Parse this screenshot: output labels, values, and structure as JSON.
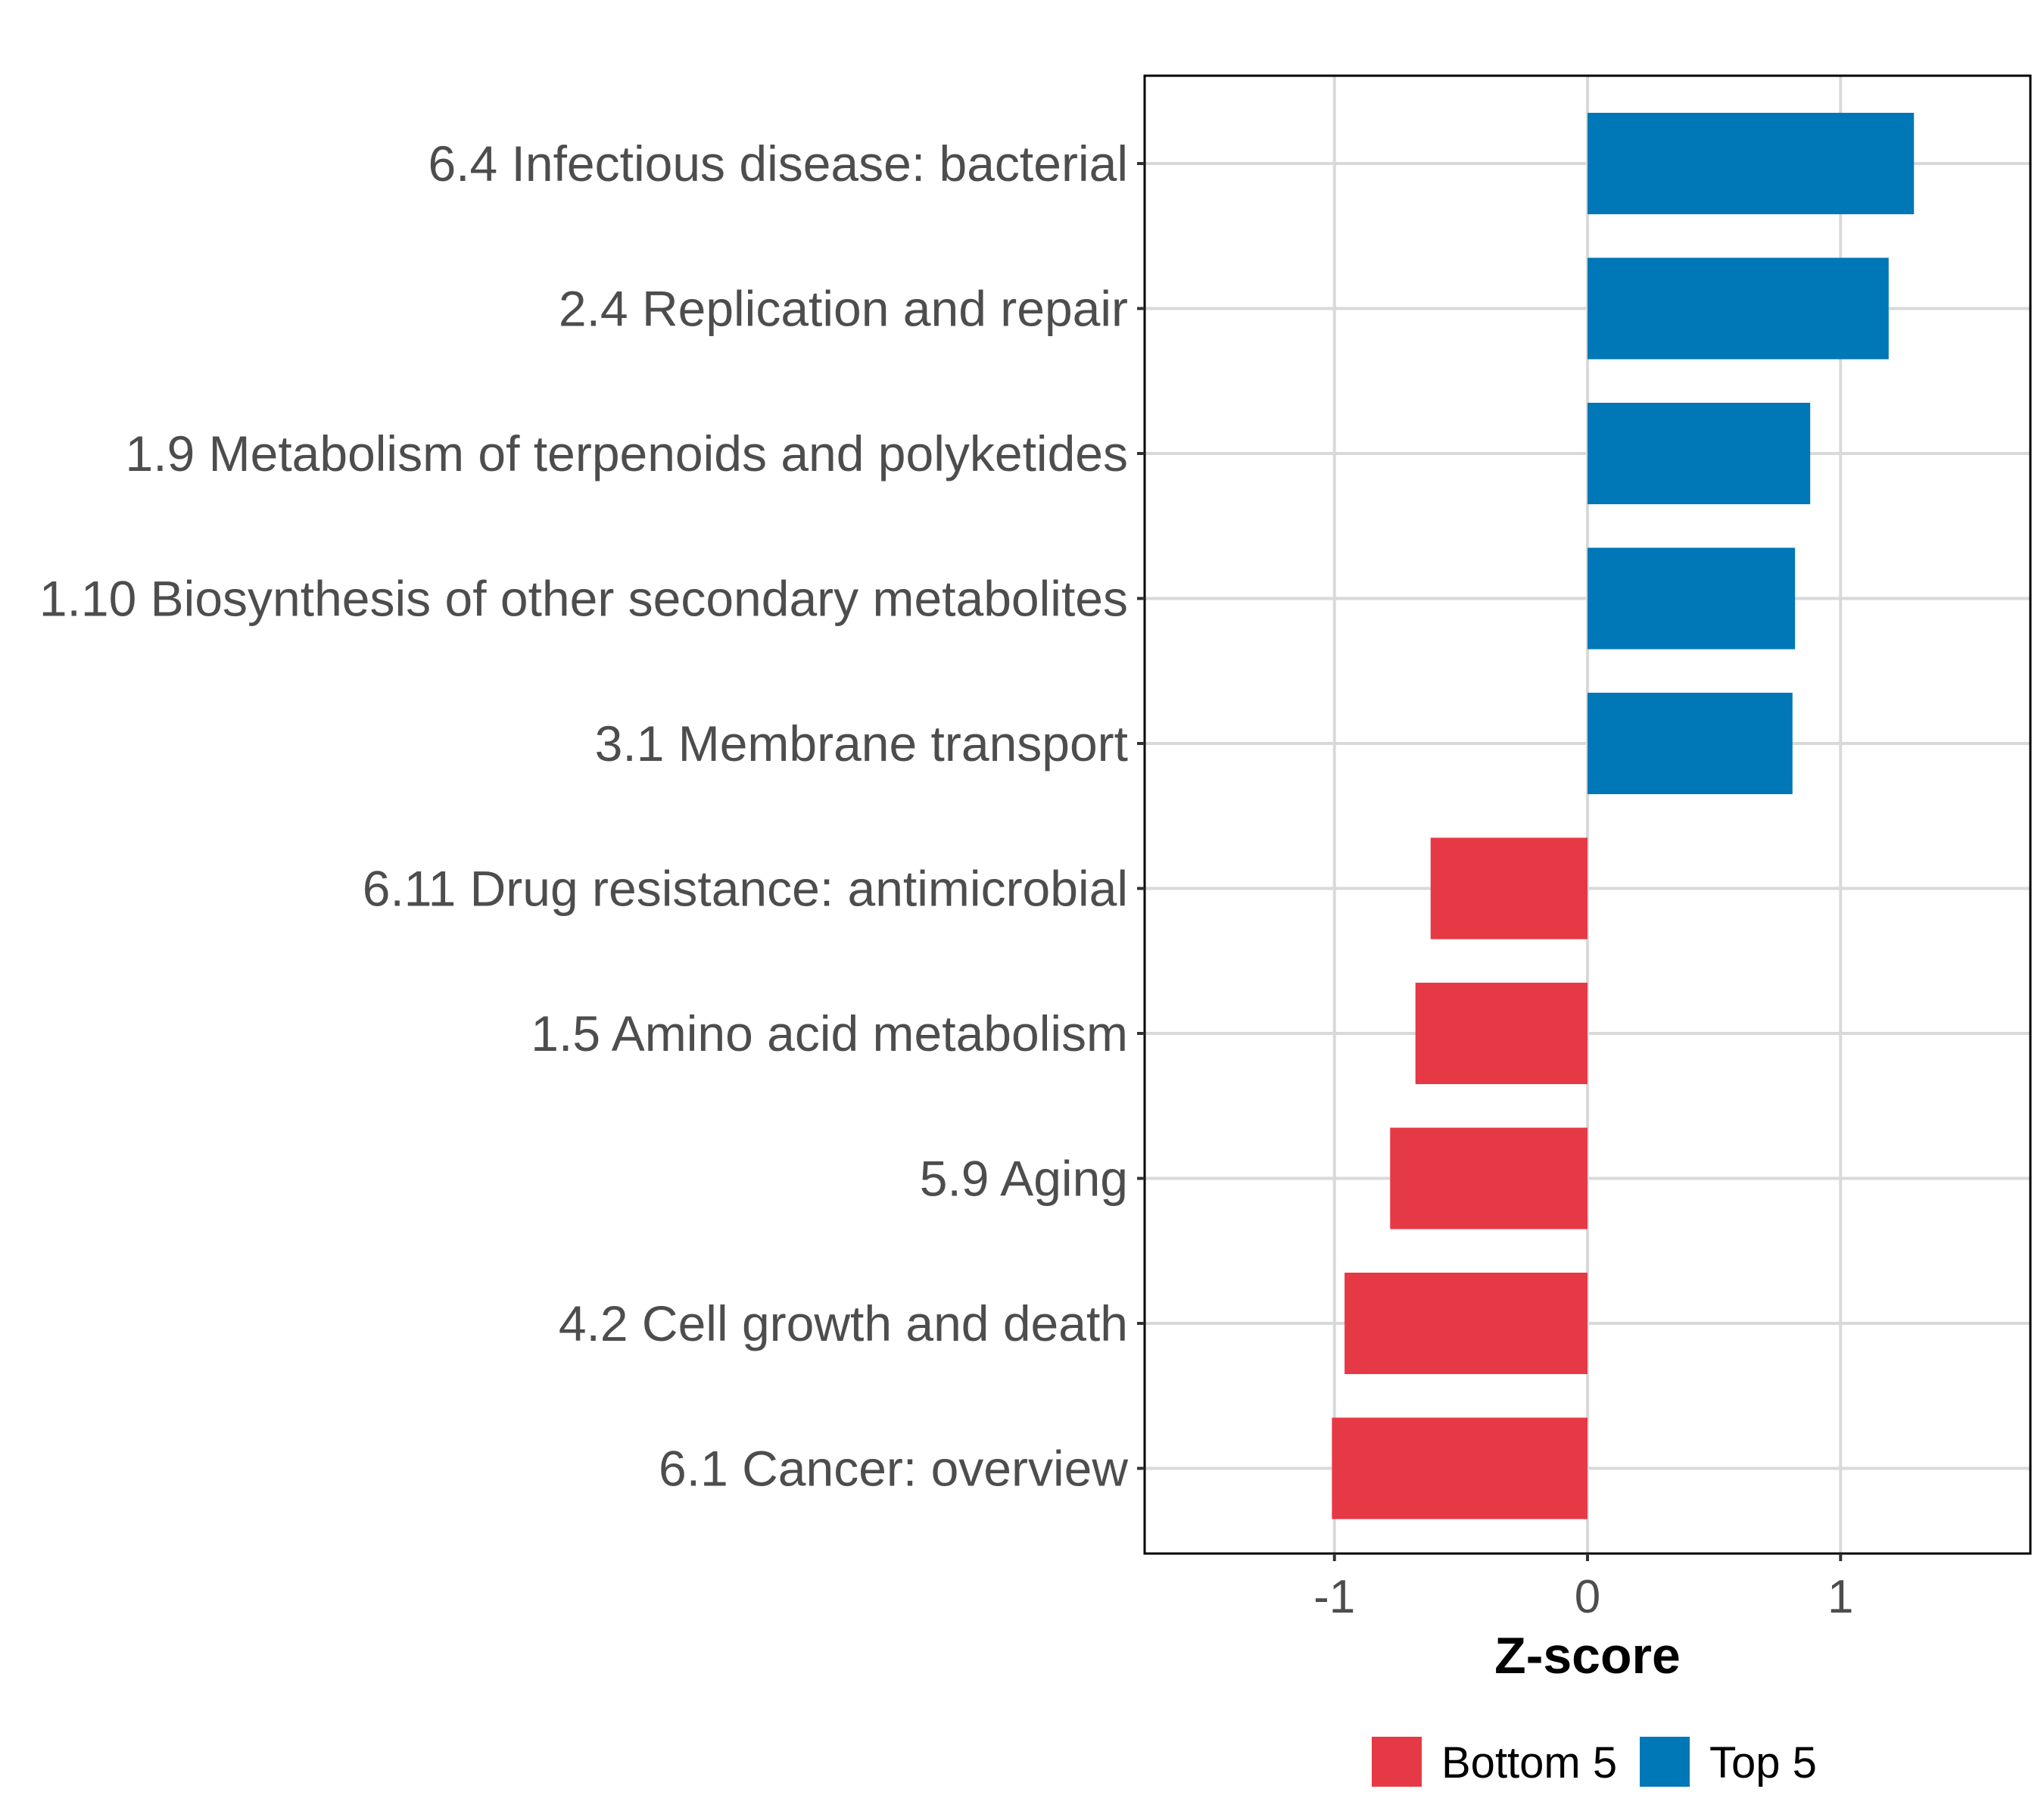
{
  "chart_data": {
    "type": "bar",
    "orientation": "horizontal",
    "title": "",
    "xlabel": "Z-score",
    "ylabel": "",
    "xlim": [
      -1.75,
      1.75
    ],
    "xticks": [
      -1,
      0,
      1
    ],
    "xtick_labels": [
      "-1",
      "0",
      "1"
    ],
    "grid": true,
    "legend_position": "bottom",
    "categories": [
      "6.4 Infectious disease: bacterial",
      "2.4 Replication and repair",
      "1.9 Metabolism of terpenoids and polyketides",
      "1.10 Biosynthesis of other secondary metabolites",
      "3.1 Membrane transport",
      "6.11 Drug resistance: antimicrobial",
      "1.5 Amino acid metabolism",
      "5.9 Aging",
      "4.2 Cell growth and death",
      "6.1 Cancer: overview"
    ],
    "values": [
      1.29,
      1.19,
      0.88,
      0.82,
      0.81,
      -0.62,
      -0.68,
      -0.78,
      -0.96,
      -1.01
    ],
    "groups": [
      "Top 5",
      "Top 5",
      "Top 5",
      "Top 5",
      "Top 5",
      "Bottom 5",
      "Bottom 5",
      "Bottom 5",
      "Bottom 5",
      "Bottom 5"
    ],
    "legend": [
      {
        "name": "Bottom 5",
        "color": "#e63946"
      },
      {
        "name": "Top 5",
        "color": "#0077b6"
      }
    ]
  }
}
